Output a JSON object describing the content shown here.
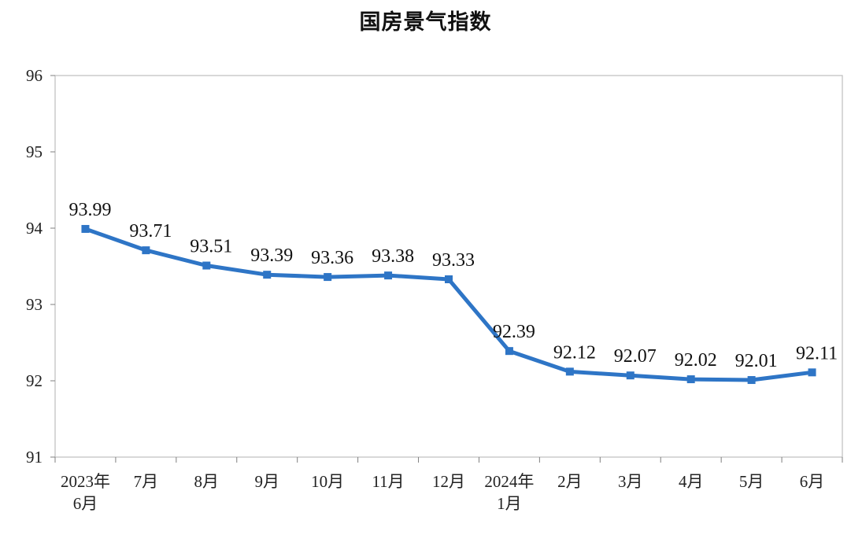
{
  "chart_data": {
    "type": "line",
    "title": "国房景气指数",
    "categories": [
      [
        "2023年",
        "6月"
      ],
      [
        "7月"
      ],
      [
        "8月"
      ],
      [
        "9月"
      ],
      [
        "10月"
      ],
      [
        "11月"
      ],
      [
        "12月"
      ],
      [
        "2024年",
        "1月"
      ],
      [
        "2月"
      ],
      [
        "3月"
      ],
      [
        "4月"
      ],
      [
        "5月"
      ],
      [
        "6月"
      ]
    ],
    "series": [
      {
        "values": [
          93.99,
          93.71,
          93.51,
          93.39,
          93.36,
          93.38,
          93.33,
          92.39,
          92.12,
          92.07,
          92.02,
          92.01,
          92.11
        ],
        "labels": [
          "93.99",
          "93.71",
          "93.51",
          "93.39",
          "93.36",
          "93.38",
          "93.33",
          "92.39",
          "92.12",
          "92.07",
          "92.02",
          "92.01",
          "92.11"
        ],
        "color": "#2e75c6",
        "marker": "square"
      }
    ],
    "ylim": [
      91,
      96
    ],
    "yticks": [
      "91",
      "92",
      "93",
      "94",
      "95",
      "96"
    ],
    "xlabel": "",
    "ylabel": "",
    "grid": false,
    "legend": "none"
  }
}
